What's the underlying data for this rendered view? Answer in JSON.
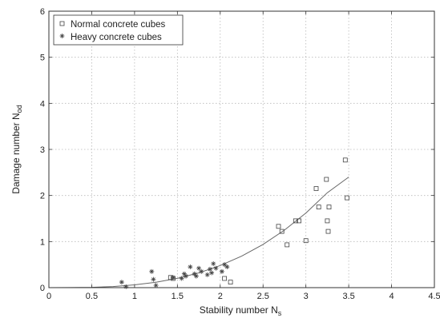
{
  "chart_data": {
    "type": "scatter",
    "title": "",
    "xlabel": "Stability number N",
    "xlabel_sub": "s",
    "ylabel": "Damage number N",
    "ylabel_sub": "od",
    "xlim": [
      0,
      4.5
    ],
    "ylim": [
      0,
      6
    ],
    "xticks": [
      0,
      0.5,
      1,
      1.5,
      2,
      2.5,
      3,
      3.5,
      4,
      4.5
    ],
    "xtick_labels": [
      "0",
      "0.5",
      "1",
      "1.5",
      "2",
      "2.5",
      "3",
      "3.5",
      "4",
      "4.5"
    ],
    "yticks": [
      0,
      1,
      2,
      3,
      4,
      5,
      6
    ],
    "ytick_labels": [
      "0",
      "1",
      "2",
      "3",
      "4",
      "5",
      "6"
    ],
    "grid": true,
    "legend_position": "top-left",
    "series": [
      {
        "name": "Normal concrete cubes",
        "marker": "square",
        "x": [
          1.42,
          1.45,
          2.05,
          2.12,
          2.68,
          2.72,
          2.78,
          2.88,
          2.92,
          3.0,
          3.12,
          3.15,
          3.24,
          3.25,
          3.26,
          3.27,
          3.46,
          3.48
        ],
        "y": [
          0.22,
          0.2,
          0.2,
          0.12,
          1.33,
          1.22,
          0.93,
          1.45,
          1.45,
          1.02,
          2.15,
          1.75,
          2.35,
          1.45,
          1.22,
          1.75,
          2.77,
          1.95
        ]
      },
      {
        "name": "Heavy concrete cubes",
        "marker": "star",
        "x": [
          0.85,
          0.9,
          1.2,
          1.22,
          1.25,
          1.45,
          1.55,
          1.58,
          1.6,
          1.65,
          1.7,
          1.72,
          1.75,
          1.78,
          1.85,
          1.88,
          1.9,
          1.92,
          1.95,
          2.02,
          2.05,
          2.08
        ],
        "y": [
          0.12,
          0.02,
          0.35,
          0.18,
          0.05,
          0.22,
          0.2,
          0.3,
          0.25,
          0.45,
          0.3,
          0.25,
          0.42,
          0.35,
          0.28,
          0.4,
          0.32,
          0.52,
          0.42,
          0.35,
          0.5,
          0.45
        ]
      }
    ],
    "fit_curve": {
      "x": [
        0,
        0.25,
        0.5,
        0.75,
        1,
        1.25,
        1.5,
        1.75,
        2,
        2.25,
        2.5,
        2.75,
        3,
        3.25,
        3.5
      ],
      "y": [
        0,
        0.0009,
        0.0075,
        0.025,
        0.06,
        0.117,
        0.202,
        0.321,
        0.48,
        0.683,
        0.938,
        1.248,
        1.62,
        2.06,
        2.4
      ]
    },
    "colors": {
      "axis": "#333333",
      "marker": "#444444",
      "curve": "#666666"
    }
  }
}
